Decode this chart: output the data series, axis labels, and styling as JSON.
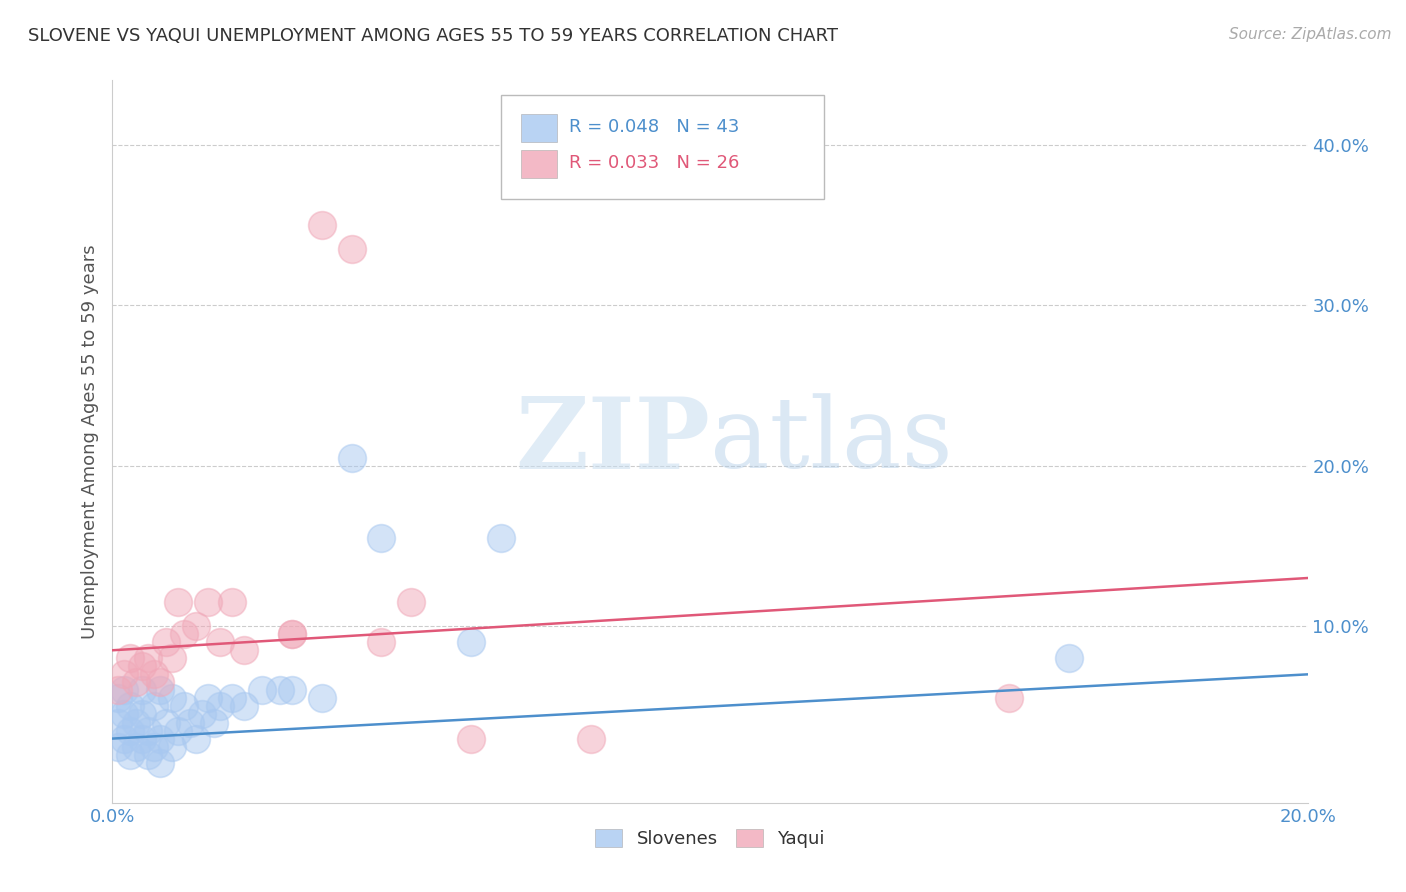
{
  "title": "SLOVENE VS YAQUI UNEMPLOYMENT AMONG AGES 55 TO 59 YEARS CORRELATION CHART",
  "source": "Source: ZipAtlas.com",
  "ylabel_label": "Unemployment Among Ages 55 to 59 years",
  "xlim": [
    0.0,
    0.2
  ],
  "ylim": [
    -0.01,
    0.44
  ],
  "ytick_vals": [
    0.1,
    0.2,
    0.3,
    0.4
  ],
  "ytick_labels": [
    "10.0%",
    "20.0%",
    "30.0%",
    "40.0%"
  ],
  "xtick_vals": [
    0.0,
    0.2
  ],
  "xtick_labels": [
    "0.0%",
    "20.0%"
  ],
  "legend_r_slovenes": "R = 0.048",
  "legend_n_slovenes": "N = 43",
  "legend_r_yaqui": "R = 0.033",
  "legend_n_yaqui": "N = 26",
  "slovenes_color": "#a8c8f0",
  "yaqui_color": "#f0a8b8",
  "slovenes_line_color": "#4d8fcc",
  "yaqui_line_color": "#e05878",
  "background_color": "#ffffff",
  "watermark_zip": "ZIP",
  "watermark_atlas": "atlas",
  "slovenes_line_start": 0.03,
  "slovenes_line_end": 0.07,
  "yaqui_line_start": 0.085,
  "yaqui_line_end": 0.13,
  "slovenes_x": [
    0.001,
    0.001,
    0.001,
    0.002,
    0.002,
    0.002,
    0.003,
    0.003,
    0.003,
    0.004,
    0.004,
    0.005,
    0.005,
    0.005,
    0.006,
    0.006,
    0.007,
    0.007,
    0.008,
    0.008,
    0.008,
    0.009,
    0.01,
    0.01,
    0.011,
    0.012,
    0.013,
    0.014,
    0.015,
    0.016,
    0.017,
    0.018,
    0.02,
    0.022,
    0.025,
    0.028,
    0.03,
    0.035,
    0.04,
    0.045,
    0.06,
    0.065,
    0.16
  ],
  "slovenes_y": [
    0.025,
    0.04,
    0.055,
    0.03,
    0.045,
    0.06,
    0.02,
    0.035,
    0.05,
    0.025,
    0.04,
    0.03,
    0.045,
    0.06,
    0.02,
    0.035,
    0.025,
    0.05,
    0.015,
    0.03,
    0.06,
    0.04,
    0.025,
    0.055,
    0.035,
    0.05,
    0.04,
    0.03,
    0.045,
    0.055,
    0.04,
    0.05,
    0.055,
    0.05,
    0.06,
    0.06,
    0.06,
    0.055,
    0.205,
    0.155,
    0.09,
    0.155,
    0.08
  ],
  "yaqui_x": [
    0.001,
    0.002,
    0.003,
    0.004,
    0.005,
    0.006,
    0.007,
    0.008,
    0.009,
    0.01,
    0.011,
    0.012,
    0.014,
    0.016,
    0.018,
    0.02,
    0.022,
    0.03,
    0.03,
    0.035,
    0.04,
    0.045,
    0.05,
    0.06,
    0.08,
    0.15
  ],
  "yaqui_y": [
    0.06,
    0.07,
    0.08,
    0.065,
    0.075,
    0.08,
    0.07,
    0.065,
    0.09,
    0.08,
    0.115,
    0.095,
    0.1,
    0.115,
    0.09,
    0.115,
    0.085,
    0.095,
    0.095,
    0.35,
    0.335,
    0.09,
    0.115,
    0.03,
    0.03,
    0.055
  ]
}
